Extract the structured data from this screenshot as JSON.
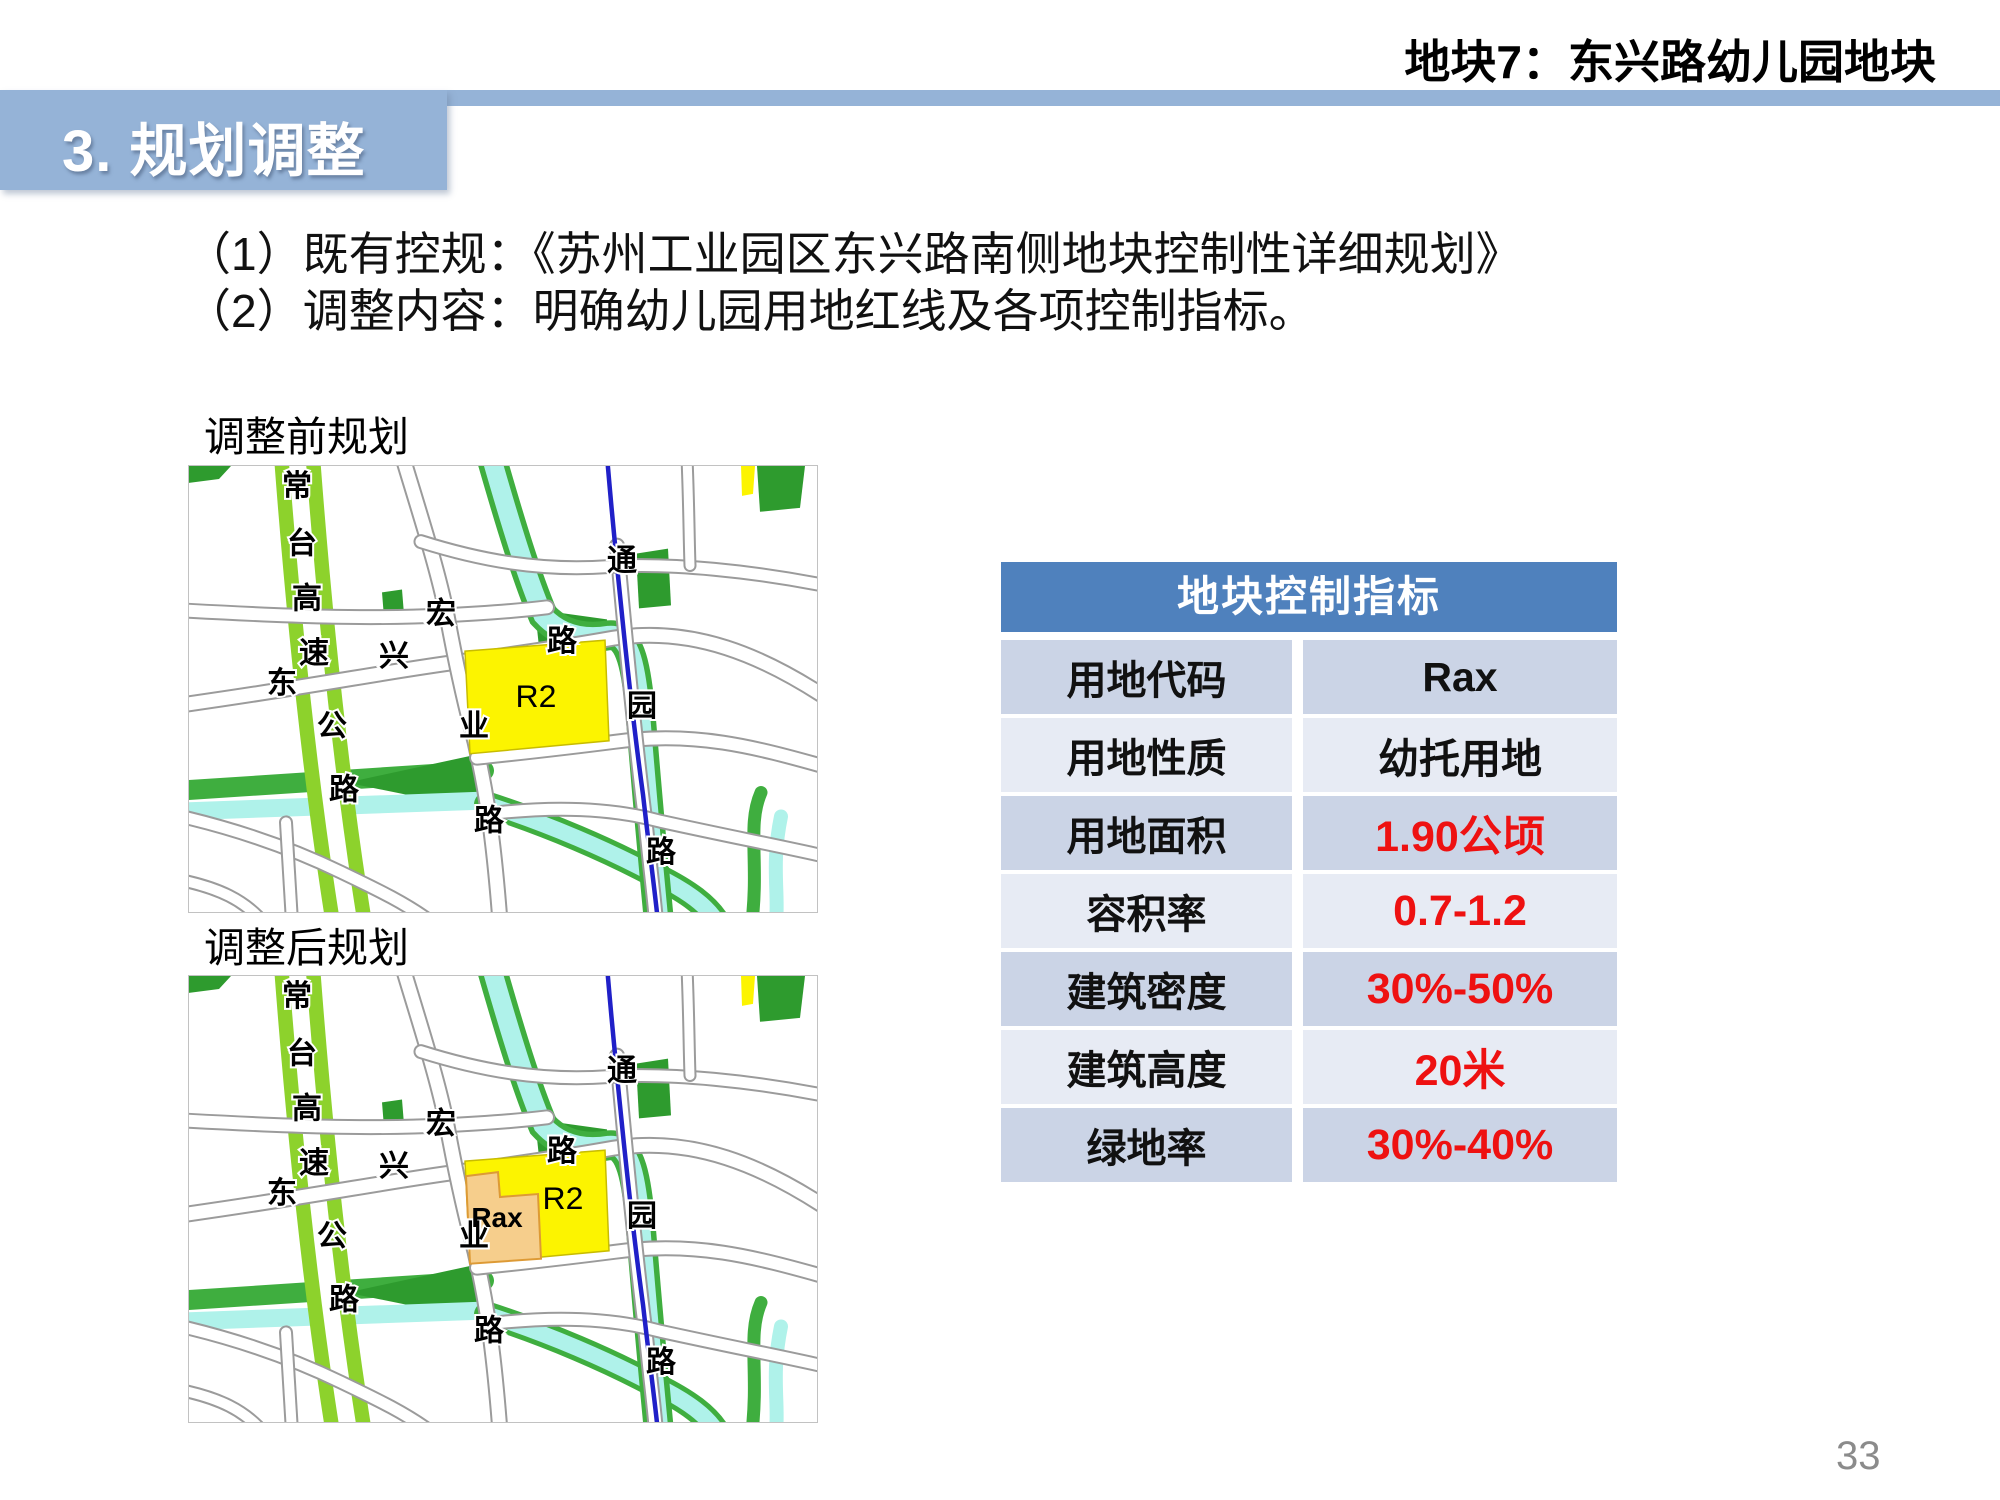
{
  "header": {
    "right_text": "地块7：东兴路幼儿园地块",
    "section_title": "3. 规划调整"
  },
  "paragraphs": [
    "（1）既有控规：《苏州工业园区东兴路南侧地块控制性详细规划》",
    "（2）调整内容：明确幼儿园用地红线及各项控制指标。"
  ],
  "maps": {
    "road_glyphs": [
      "常",
      "台",
      "高",
      "速",
      "公",
      "路",
      "东",
      "兴",
      "宏",
      "路",
      "业",
      "路",
      "通",
      "园",
      "路"
    ],
    "before": {
      "caption": "调整前规划",
      "zone": "R2"
    },
    "after": {
      "caption": "调整后规划",
      "zone": "R2",
      "sub_zone": "Rax"
    }
  },
  "table": {
    "title": "地块控制指标",
    "rows": [
      {
        "label": "用地代码",
        "value": "Rax",
        "highlight": false
      },
      {
        "label": "用地性质",
        "value": "幼托用地",
        "highlight": false
      },
      {
        "label": "用地面积",
        "value": "1.90公顷",
        "highlight": true
      },
      {
        "label": "容积率",
        "value": "0.7-1.2",
        "highlight": true
      },
      {
        "label": "建筑密度",
        "value": "30%-50%",
        "highlight": true
      },
      {
        "label": "建筑高度",
        "value": "20米",
        "highlight": true
      },
      {
        "label": "绿地率",
        "value": "30%-40%",
        "highlight": true
      }
    ]
  },
  "page_number": "33",
  "colors": {
    "accent_blue": "#95B3D7",
    "table_header_blue": "#4F81BD",
    "row_band_dark": "#CBD4E6",
    "row_band_light": "#E7EBF4",
    "value_red": "#EE1111",
    "highway_green": "#8DD22C",
    "park_green": "#2E9B2E",
    "canal_edge_green": "#3FAE3F",
    "water_cyan": "#AFF2EA",
    "river_blue": "#2020C8",
    "zone_yellow": "#FCF400",
    "zone_orange": "#F6CE8C"
  }
}
